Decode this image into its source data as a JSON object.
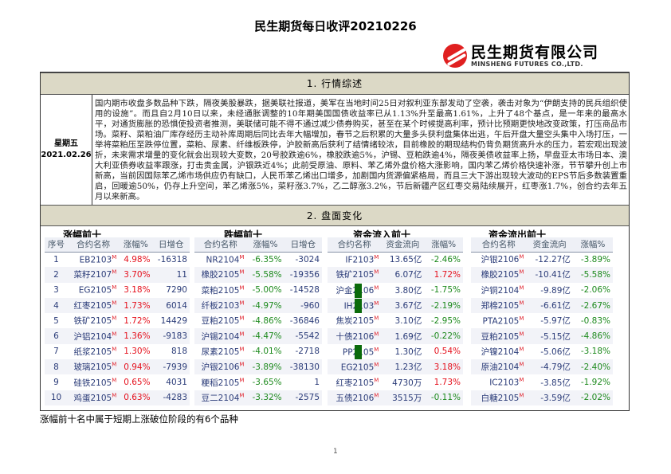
{
  "title": "民生期货每日收评20210226",
  "logo": {
    "cn": "民生期货有限公司",
    "en": "MINSHENG FUTURES CO.,LTD."
  },
  "section1": {
    "title": "1. 行情综述",
    "weekday": "星期五",
    "date": "2021.02.26",
    "text": "国内期市收盘多数品种下跌，隔夜美股暴跌，据美联社报道，美军在当地时间25日对叙利亚东部发动了空袭，袭击对象为“伊朗支持的民兵组织使用的设施”。而且自2月10日以来，未经通胀调整的10年期美国国债收益率已从1.13%升至最高1.61%，上升了48个基点，是一年来的最高水平，对通货膨胀的恐惧使投资者推测，美联储可能不得不通过减少债券购买，甚至在某个时候提高利率，预计比预期更快地改变政策，打压商品市场。菜籽、菜粕油厂库存经历主动补库周期后同比去年大幅增加，春节之后积累的大量多头获利盘集体出逃，午后开盘大量空头集中入场打压，一举将菜粕压至跌停位置，菜粕、尿素、纤维板跌停，沪胶新高后获利了结情绪较浓，目前橡胶的期现结构仍背负期货高升水的压力，若宏观出现波折，未来需求增量的变化就会出现较大变数，20号胶跌逾6%，橡胶跌逾5%，沪锡、豆粕跌逾4%，隔夜美债收益率上扬，早盘亚太市场日本、澳大利亚债券收益率跟涨，打击贵金属，沪银跌近4%；此前受原油、原料、苯乙烯外盘价格大涨影响，国内苯乙烯价格快速补涨，节节攀升创上市新高，当前因国际苯乙烯市场供应仍有缺口，人民币苯乙烯出口增多，加剧国内货源偏紧格局，而且三大下游出现较大波动的EPS节后多数装置重启，回暖逾50%，仍存上升空间，苯乙烯涨5%，菜籽涨3.7%，乙二醇涨3.2%，节后新疆产区红枣交易陆续展开，红枣涨1.7%，创合约去年五月以来新高。"
  },
  "section2": {
    "title": "2. 盘面变化",
    "suffix": "M",
    "gainers": {
      "title": "涨幅前十",
      "headers": [
        "序号",
        "合约名称",
        "涨幅%",
        "日增仓"
      ],
      "rows": [
        [
          "1",
          "EB2103",
          "4.98%",
          "-16318"
        ],
        [
          "2",
          "菜籽2107",
          "3.70%",
          "11"
        ],
        [
          "3",
          "EG2105",
          "3.18%",
          "7290"
        ],
        [
          "4",
          "红枣2105",
          "1.73%",
          "6014"
        ],
        [
          "5",
          "铁矿2105",
          "1.72%",
          "14429"
        ],
        [
          "6",
          "沪铝2104",
          "1.36%",
          "-9183"
        ],
        [
          "7",
          "纸浆2105",
          "1.30%",
          "818"
        ],
        [
          "8",
          "玻璃2105",
          "0.94%",
          "-7939"
        ],
        [
          "9",
          "硅铁2105",
          "0.65%",
          "4031"
        ],
        [
          "10",
          "鸡蛋2105",
          "0.63%",
          "-4283"
        ]
      ]
    },
    "losers": {
      "title": "跌幅前十",
      "headers": [
        "合约名称",
        "涨幅%",
        "日增仓"
      ],
      "rows": [
        [
          "NR2104",
          "-6.35%",
          "-3024"
        ],
        [
          "橡胶2105",
          "-5.58%",
          "-19356"
        ],
        [
          "菜粕2105",
          "-5.00%",
          "-14528"
        ],
        [
          "纤板2103",
          "-4.97%",
          "-960"
        ],
        [
          "豆粕2105",
          "-4.86%",
          "-36846"
        ],
        [
          "沪锡2104",
          "-4.47%",
          "-5542"
        ],
        [
          "尿素2105",
          "-4.01%",
          "-2718"
        ],
        [
          "沪银2106",
          "-3.89%",
          "-38130"
        ],
        [
          "粳稻2105",
          "-3.65%",
          "1"
        ],
        [
          "豆二2104",
          "-3.32%",
          "-2575"
        ]
      ],
      "limit_down_flags": [
        false,
        false,
        true,
        true,
        false,
        false,
        true,
        false,
        false,
        false
      ],
      "flag_color": "#0b6b0b"
    },
    "inflow": {
      "title": "资金流入前十",
      "headers": [
        "合约名称",
        "资金流向",
        "涨幅%"
      ],
      "rows": [
        [
          "IF2103",
          "13.65亿",
          "-2.46%"
        ],
        [
          "铁矿2105",
          "6.07亿",
          "1.72%"
        ],
        [
          "沪金2106",
          "3.80亿",
          "-1.75%"
        ],
        [
          "IH2103",
          "3.67亿",
          "-2.19%"
        ],
        [
          "焦炭2105",
          "3.10亿",
          "-2.95%"
        ],
        [
          "十债2106",
          "1.69亿",
          "-0.22%"
        ],
        [
          "PP2105",
          "1.30亿",
          "0.54%"
        ],
        [
          "EG2105",
          "1.23亿",
          "3.18%"
        ],
        [
          "红枣2105",
          "4730万",
          "1.73%"
        ],
        [
          "五债2106",
          "3515万",
          "-0.11%"
        ]
      ]
    },
    "outflow": {
      "title": "资金流出前十",
      "headers": [
        "合约名称",
        "资金流向",
        "涨幅%"
      ],
      "rows": [
        [
          "沪银2106",
          "-12.27亿",
          "-3.89%"
        ],
        [
          "橡胶2105",
          "-10.41亿",
          "-5.58%"
        ],
        [
          "沪铜2104",
          "-9.89亿",
          "-2.06%"
        ],
        [
          "郑棉2105",
          "-6.61亿",
          "-2.67%"
        ],
        [
          "PTA2105",
          "-5.97亿",
          "-0.83%"
        ],
        [
          "豆粕2105",
          "-5.15亿",
          "-4.86%"
        ],
        [
          "沪镍2104",
          "-5.06亿",
          "-3.18%"
        ],
        [
          "原油2104",
          "-4.79亿",
          "-2.40%"
        ],
        [
          "IC2103",
          "-3.85亿",
          "-1.92%"
        ],
        [
          "白糖2105",
          "-3.59亿",
          "-2.02%"
        ]
      ]
    }
  },
  "footer": "涨幅前十名中属于短期上涨破位阶段的有6个品种",
  "page_number": "1",
  "colors": {
    "up": "#e5101c",
    "down": "#1d8a1d",
    "section_bg": "#dcd9c6"
  }
}
